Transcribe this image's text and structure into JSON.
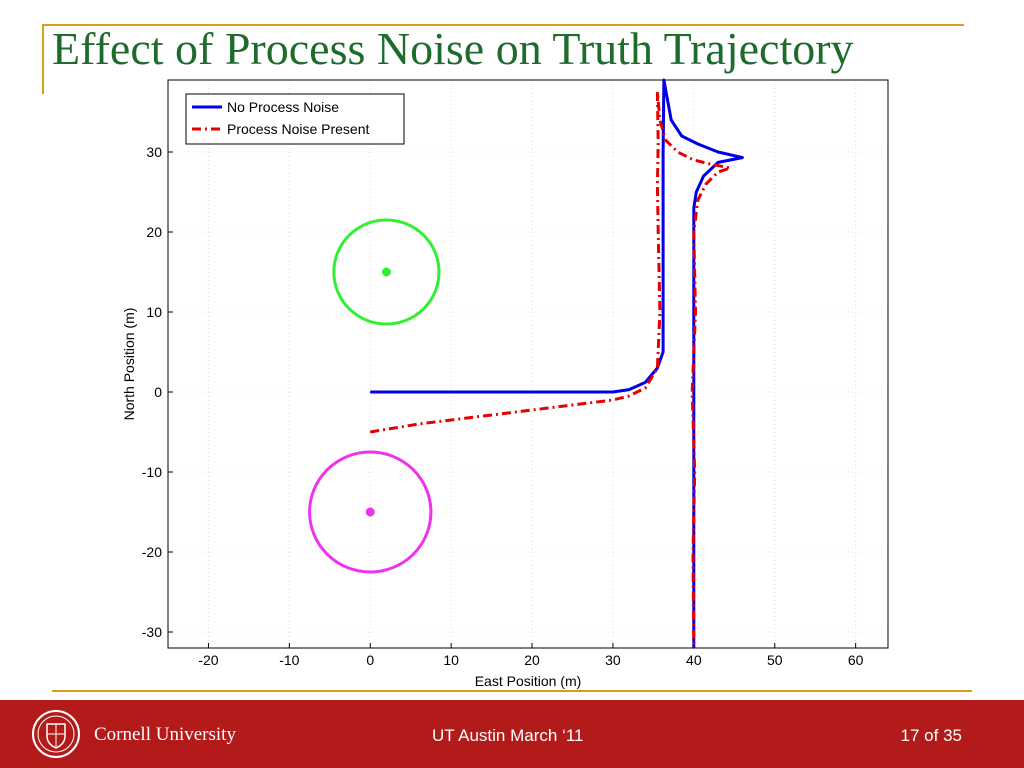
{
  "slide": {
    "title": "Effect of Process Noise on Truth Trajectory"
  },
  "footer": {
    "university": "Cornell University",
    "venue": "UT Austin March ‘11",
    "page_current": "17",
    "page_sep": "of",
    "page_total": "35",
    "accent_color": "#b31b1b"
  },
  "chart_data": {
    "type": "line",
    "xlabel": "East Position (m)",
    "ylabel": "North Position (m)",
    "xlim": [
      -25,
      64
    ],
    "ylim": [
      -32,
      39
    ],
    "xticks": [
      -20,
      -10,
      0,
      10,
      20,
      30,
      40,
      50,
      60
    ],
    "yticks": [
      -30,
      -20,
      -10,
      0,
      10,
      20,
      30
    ],
    "grid": true,
    "legend_position": "top-left",
    "series": [
      {
        "name": "No Process Noise",
        "color": "#0000e6",
        "style": "solid",
        "x": [
          0,
          10,
          20,
          30,
          32,
          34,
          35.5,
          36.2,
          36.2,
          36.2,
          36.3,
          37.2,
          38.5,
          40.5,
          43,
          46,
          43,
          41.2,
          40.3,
          40,
          40,
          40,
          40,
          40
        ],
        "y": [
          0,
          0,
          0,
          0,
          0.3,
          1.2,
          3,
          5,
          15,
          30,
          39,
          34,
          32,
          31,
          30,
          29.3,
          28.7,
          27,
          25,
          23,
          10,
          0,
          -20,
          -32
        ]
      },
      {
        "name": "Process Noise Present",
        "color": "#e60000",
        "style": "dashdot",
        "x": [
          0,
          3,
          6,
          10,
          14,
          18,
          22,
          26,
          30,
          32,
          34,
          35.5,
          35.8,
          35.6,
          35.5,
          35.6,
          35.5,
          35.8,
          36.5,
          38,
          40,
          42,
          44.5,
          43,
          41.5,
          40.5,
          40,
          40.2,
          39.8,
          40.1,
          39.9,
          40
        ],
        "y": [
          -5,
          -4.5,
          -4,
          -3.5,
          -3,
          -2.5,
          -2,
          -1.5,
          -1,
          -0.5,
          0.5,
          3,
          10,
          20,
          26,
          31,
          37.5,
          34,
          31.5,
          30,
          29,
          28.5,
          28,
          27.5,
          26,
          24,
          20,
          10,
          0,
          -10,
          -20,
          -32
        ]
      }
    ],
    "circles": [
      {
        "cx": 2,
        "cy": 15,
        "r": 6.5,
        "color": "#33ee33"
      },
      {
        "cx": 0,
        "cy": -15,
        "r": 7.5,
        "color": "#ee33ee"
      }
    ]
  }
}
